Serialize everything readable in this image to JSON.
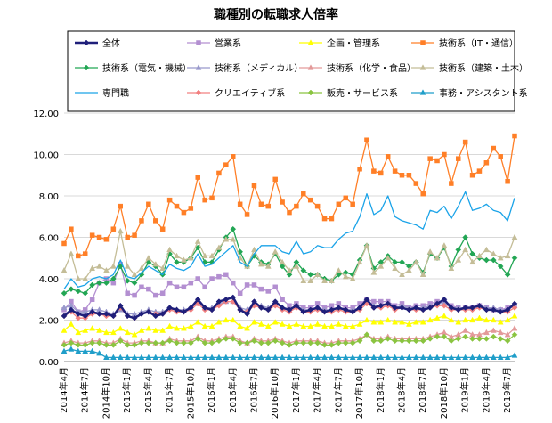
{
  "chart_data": {
    "type": "line",
    "title": "職種別の転職求人倍率",
    "ylim": [
      0,
      12
    ],
    "y_ticks": [
      "0.00",
      "2.00",
      "4.00",
      "6.00",
      "8.00",
      "10.00",
      "12.00"
    ],
    "x_tick_labels": [
      "2014年4月",
      "2014年7月",
      "2014年10月",
      "2015年1月",
      "2015年4月",
      "2015年7月",
      "2015年10月",
      "2016年1月",
      "2016年4月",
      "2016年7月",
      "2016年10月",
      "2017年1月",
      "2017年4月",
      "2017年7月",
      "2017年10月",
      "2018年1月",
      "2018年4月",
      "2018年7月",
      "2018年10月",
      "2019年1月",
      "2019年4月",
      "2019年7月"
    ],
    "n_points": 65,
    "grid": true,
    "legend_position": "top",
    "series": [
      {
        "name": "全体",
        "color": "#1f1f7a",
        "marker": "diamond",
        "width": 2.5,
        "values": [
          2.2,
          2.5,
          2.3,
          2.2,
          2.4,
          2.3,
          2.3,
          2.2,
          2.7,
          2.2,
          2.1,
          2.3,
          2.4,
          2.2,
          2.3,
          2.6,
          2.5,
          2.4,
          2.6,
          3.0,
          2.6,
          2.5,
          2.9,
          3.0,
          3.1,
          2.5,
          2.3,
          2.9,
          2.6,
          2.5,
          2.9,
          2.6,
          2.5,
          2.7,
          2.4,
          2.5,
          2.6,
          2.4,
          2.5,
          2.6,
          2.5,
          2.4,
          2.6,
          3.0,
          2.6,
          2.7,
          2.8,
          2.6,
          2.6,
          2.5,
          2.6,
          2.5,
          2.6,
          2.8,
          3.0,
          2.6,
          2.5,
          2.6,
          2.6,
          2.7,
          2.5,
          2.5,
          2.4,
          2.5,
          2.8
        ]
      },
      {
        "name": "営業系",
        "color": "#b38fd1",
        "marker": "square",
        "width": 1.3,
        "values": [
          2.5,
          2.9,
          2.4,
          2.5,
          3.0,
          3.8,
          4.0,
          3.8,
          4.7,
          3.3,
          3.2,
          3.6,
          3.5,
          3.2,
          3.3,
          3.8,
          3.6,
          3.6,
          3.8,
          4.0,
          3.6,
          4.0,
          4.1,
          4.2,
          3.8,
          3.3,
          3.7,
          3.7,
          3.5,
          3.4,
          3.6,
          3.0,
          2.7,
          2.8,
          2.6,
          2.6,
          2.8,
          2.6,
          2.7,
          2.8,
          2.6,
          2.6,
          2.8,
          3.0,
          2.9,
          2.9,
          2.9,
          2.7,
          2.8,
          2.6,
          2.7,
          2.7,
          2.8,
          2.9,
          2.9,
          2.7,
          2.6,
          2.6,
          2.6,
          2.7,
          2.6,
          2.5,
          2.5,
          2.6,
          2.7
        ]
      },
      {
        "name": "企画・管理系",
        "color": "#ffff00",
        "marker": "triangle",
        "width": 1.3,
        "values": [
          1.5,
          1.8,
          1.4,
          1.5,
          1.6,
          1.5,
          1.4,
          1.4,
          1.6,
          1.4,
          1.3,
          1.5,
          1.6,
          1.5,
          1.5,
          1.7,
          1.6,
          1.6,
          1.7,
          1.9,
          1.7,
          1.7,
          1.9,
          2.0,
          2.0,
          1.7,
          1.6,
          1.9,
          1.8,
          1.7,
          1.9,
          1.8,
          1.7,
          1.8,
          1.7,
          1.7,
          1.8,
          1.7,
          1.7,
          1.8,
          1.7,
          1.7,
          1.8,
          2.0,
          1.9,
          1.9,
          2.0,
          1.9,
          1.9,
          1.8,
          1.9,
          1.9,
          2.0,
          2.1,
          2.2,
          2.0,
          1.9,
          2.0,
          2.0,
          2.1,
          2.0,
          2.0,
          1.9,
          2.0,
          2.2
        ]
      },
      {
        "name": "技術系（IT・通信）",
        "color": "#ff7f27",
        "marker": "square",
        "width": 1.3,
        "values": [
          5.7,
          6.4,
          5.1,
          5.2,
          6.1,
          6.0,
          5.9,
          6.4,
          7.5,
          6.0,
          6.1,
          6.8,
          7.6,
          6.8,
          6.4,
          7.8,
          7.5,
          7.2,
          7.4,
          8.9,
          7.8,
          7.9,
          9.1,
          9.5,
          9.9,
          7.6,
          7.1,
          8.5,
          7.6,
          7.5,
          8.8,
          7.7,
          7.2,
          7.5,
          8.1,
          7.8,
          7.5,
          6.9,
          6.9,
          7.6,
          7.9,
          7.6,
          9.3,
          10.7,
          9.2,
          9.1,
          9.9,
          9.2,
          9.0,
          9.0,
          8.6,
          8.1,
          9.8,
          9.7,
          10.0,
          8.6,
          9.8,
          10.6,
          9.0,
          9.2,
          9.6,
          10.3,
          9.9,
          8.7,
          10.9
        ]
      },
      {
        "name": "技術系（電気・機械）",
        "color": "#22a654",
        "marker": "diamond",
        "width": 1.3,
        "values": [
          3.3,
          3.5,
          3.4,
          3.3,
          3.7,
          3.8,
          3.8,
          4.0,
          4.6,
          3.9,
          3.8,
          4.2,
          4.8,
          4.6,
          4.2,
          5.2,
          4.8,
          4.8,
          5.0,
          5.5,
          4.8,
          4.8,
          5.4,
          6.0,
          6.4,
          5.3,
          4.6,
          5.1,
          4.8,
          4.7,
          5.2,
          4.6,
          4.2,
          4.8,
          4.4,
          4.2,
          4.2,
          4.0,
          3.9,
          4.2,
          4.3,
          4.2,
          4.9,
          5.6,
          4.5,
          4.8,
          5.1,
          4.8,
          4.8,
          4.6,
          4.8,
          4.3,
          5.2,
          5.0,
          5.5,
          4.6,
          5.4,
          6.0,
          5.2,
          5.0,
          4.9,
          4.9,
          4.6,
          4.2,
          5.0
        ]
      },
      {
        "name": "技術系（メディカル）",
        "color": "#9999cc",
        "marker": "triangle",
        "width": 1.3,
        "values": [
          2.6,
          2.7,
          2.4,
          2.4,
          2.5,
          2.5,
          2.4,
          2.3,
          2.5,
          2.3,
          2.3,
          2.4,
          2.5,
          2.4,
          2.4,
          2.6,
          2.5,
          2.5,
          2.6,
          2.8,
          2.6,
          2.6,
          2.8,
          2.9,
          2.9,
          2.6,
          2.5,
          2.8,
          2.7,
          2.6,
          2.8,
          2.6,
          2.5,
          2.7,
          2.5,
          2.5,
          2.6,
          2.5,
          2.5,
          2.6,
          2.5,
          2.5,
          2.6,
          2.9,
          2.7,
          2.7,
          2.8,
          2.6,
          2.7,
          2.6,
          2.6,
          2.6,
          2.7,
          2.8,
          2.8,
          2.6,
          2.6,
          2.6,
          2.6,
          2.7,
          2.6,
          2.6,
          2.5,
          2.5,
          2.7
        ]
      },
      {
        "name": "技術系（化学・食品）",
        "color": "#e39a9a",
        "marker": "triangle",
        "width": 1.3,
        "values": [
          0.9,
          1.0,
          0.9,
          0.9,
          1.0,
          1.0,
          0.9,
          0.9,
          1.1,
          0.9,
          0.9,
          1.0,
          1.0,
          0.9,
          0.9,
          1.1,
          1.0,
          1.0,
          1.0,
          1.2,
          1.0,
          1.0,
          1.1,
          1.2,
          1.2,
          1.0,
          0.9,
          1.1,
          1.0,
          1.0,
          1.1,
          1.0,
          0.9,
          1.0,
          1.0,
          1.0,
          1.0,
          0.9,
          0.9,
          1.0,
          1.0,
          1.0,
          1.1,
          1.3,
          1.1,
          1.1,
          1.2,
          1.1,
          1.1,
          1.1,
          1.1,
          1.1,
          1.2,
          1.3,
          1.4,
          1.2,
          1.3,
          1.5,
          1.3,
          1.3,
          1.4,
          1.5,
          1.4,
          1.3,
          1.6
        ]
      },
      {
        "name": "技術系（建築・土木）",
        "color": "#c4bd97",
        "marker": "triangle",
        "width": 1.3,
        "values": [
          4.4,
          5.2,
          4.0,
          4.0,
          4.5,
          4.6,
          4.4,
          4.6,
          6.3,
          4.6,
          4.2,
          4.5,
          5.0,
          4.7,
          4.5,
          5.4,
          5.1,
          4.9,
          5.0,
          5.8,
          5.1,
          5.1,
          5.5,
          5.9,
          5.9,
          5.0,
          4.6,
          5.4,
          4.7,
          4.6,
          5.3,
          4.8,
          4.4,
          4.6,
          3.9,
          3.9,
          4.2,
          3.9,
          3.9,
          4.4,
          4.1,
          4.0,
          4.8,
          5.6,
          4.3,
          4.6,
          5.0,
          4.5,
          4.2,
          4.4,
          4.8,
          4.2,
          5.3,
          5.0,
          5.6,
          4.5,
          4.9,
          5.4,
          4.8,
          5.1,
          5.4,
          5.2,
          5.0,
          5.1,
          6.0
        ]
      },
      {
        "name": "専門職",
        "color": "#1aa3e8",
        "marker": "none",
        "width": 1.3,
        "values": [
          3.5,
          4.0,
          3.6,
          3.7,
          4.0,
          4.1,
          4.0,
          4.2,
          4.9,
          4.1,
          4.0,
          4.3,
          4.6,
          4.4,
          4.2,
          4.7,
          4.5,
          4.4,
          4.6,
          5.2,
          4.6,
          4.7,
          5.0,
          5.3,
          5.6,
          4.8,
          4.6,
          5.2,
          5.6,
          5.6,
          5.6,
          5.3,
          5.2,
          5.8,
          5.2,
          5.3,
          5.6,
          5.5,
          5.5,
          5.9,
          6.2,
          6.3,
          7.0,
          8.1,
          7.1,
          7.3,
          8.0,
          7.0,
          6.8,
          6.7,
          6.6,
          6.4,
          7.3,
          7.2,
          7.5,
          6.9,
          7.5,
          8.2,
          7.3,
          7.4,
          7.6,
          7.3,
          7.2,
          6.8,
          7.9
        ]
      },
      {
        "name": "クリエイティブ系",
        "color": "#f28080",
        "marker": "diamond",
        "width": 1.3,
        "values": [
          2.2,
          2.4,
          2.1,
          2.1,
          2.3,
          2.3,
          2.2,
          2.2,
          2.6,
          2.2,
          2.1,
          2.3,
          2.4,
          2.3,
          2.3,
          2.5,
          2.4,
          2.4,
          2.5,
          2.8,
          2.5,
          2.5,
          2.7,
          2.9,
          2.9,
          2.5,
          2.4,
          2.7,
          2.6,
          2.5,
          2.7,
          2.5,
          2.4,
          2.6,
          2.4,
          2.4,
          2.5,
          2.4,
          2.4,
          2.5,
          2.4,
          2.4,
          2.5,
          2.8,
          2.6,
          2.6,
          2.7,
          2.5,
          2.6,
          2.5,
          2.5,
          2.5,
          2.6,
          2.7,
          2.7,
          2.5,
          2.5,
          2.5,
          2.5,
          2.6,
          2.5,
          2.5,
          2.4,
          2.4,
          2.6
        ]
      },
      {
        "name": "販売・サービス系",
        "color": "#8ac440",
        "marker": "diamond",
        "width": 1.3,
        "values": [
          0.8,
          0.9,
          0.8,
          0.8,
          0.9,
          0.9,
          0.8,
          0.8,
          1.0,
          0.8,
          0.8,
          0.9,
          0.9,
          0.9,
          0.9,
          1.0,
          0.9,
          0.9,
          0.9,
          1.1,
          0.9,
          0.9,
          1.0,
          1.1,
          1.1,
          0.9,
          0.9,
          1.0,
          0.9,
          0.9,
          1.0,
          0.9,
          0.8,
          0.9,
          0.9,
          0.9,
          0.9,
          0.8,
          0.8,
          0.9,
          0.9,
          0.9,
          1.0,
          1.3,
          1.0,
          1.0,
          1.1,
          1.0,
          1.0,
          1.0,
          1.0,
          1.0,
          1.1,
          1.2,
          1.2,
          1.0,
          1.1,
          1.2,
          1.1,
          1.1,
          1.1,
          1.2,
          1.1,
          1.0,
          1.3
        ]
      },
      {
        "name": "事務・アシスタント系",
        "color": "#1f9ec9",
        "marker": "triangle",
        "width": 1.3,
        "values": [
          0.5,
          0.6,
          0.5,
          0.5,
          0.5,
          0.4,
          0.2,
          0.2,
          0.2,
          0.2,
          0.2,
          0.2,
          0.2,
          0.2,
          0.2,
          0.2,
          0.2,
          0.2,
          0.2,
          0.2,
          0.2,
          0.2,
          0.2,
          0.2,
          0.2,
          0.2,
          0.2,
          0.2,
          0.2,
          0.2,
          0.2,
          0.2,
          0.2,
          0.2,
          0.2,
          0.2,
          0.2,
          0.2,
          0.2,
          0.2,
          0.2,
          0.2,
          0.2,
          0.2,
          0.2,
          0.2,
          0.2,
          0.2,
          0.2,
          0.2,
          0.2,
          0.2,
          0.2,
          0.2,
          0.2,
          0.2,
          0.2,
          0.2,
          0.2,
          0.2,
          0.2,
          0.2,
          0.2,
          0.2,
          0.3
        ]
      }
    ]
  }
}
